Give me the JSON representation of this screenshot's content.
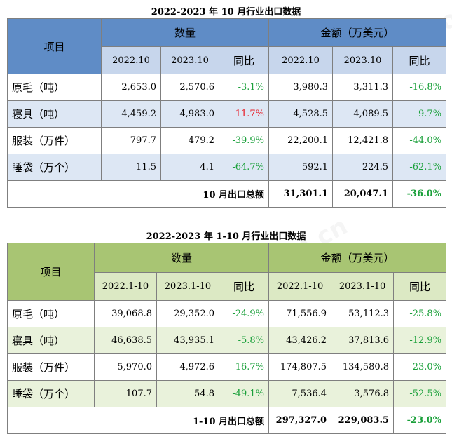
{
  "table1": {
    "title": "2022-2023 年 10 月行业出口数据",
    "item_header": "项目",
    "qty_header": "数量",
    "amt_header": "金额（万美元）",
    "sub_headers": [
      "2022.10",
      "2023.10",
      "同比",
      "2022.10",
      "2023.10",
      "同比"
    ],
    "rows": [
      {
        "label": "原毛（吨）",
        "q1": "2,653.0",
        "q2": "2,570.6",
        "qyoy": "-3.1%",
        "a1": "3,980.3",
        "a2": "3,311.3",
        "ayoy": "-16.8%"
      },
      {
        "label": "寝具（吨）",
        "q1": "4,459.2",
        "q2": "4,983.0",
        "qyoy": "11.7%",
        "a1": "4,528.5",
        "a2": "4,089.5",
        "ayoy": "-9.7%"
      },
      {
        "label": "服装（万件）",
        "q1": "797.7",
        "q2": "479.2",
        "qyoy": "-39.9%",
        "a1": "22,200.1",
        "a2": "12,421.8",
        "ayoy": "-44.0%"
      },
      {
        "label": "睡袋（万个）",
        "q1": "11.5",
        "q2": "4.1",
        "qyoy": "-64.7%",
        "a1": "592.1",
        "a2": "224.5",
        "ayoy": "-62.1%"
      }
    ],
    "total": {
      "label": "10 月出口总额",
      "a1": "31,301.1",
      "a2": "20,047.1",
      "ayoy": "-36.0%"
    },
    "colors": {
      "header_dark": "#5f8cc6",
      "header_light": "#c7d6ec",
      "row_alt": "#dde7f4"
    }
  },
  "table2": {
    "title": "2022-2023 年 1-10 月行业出口数据",
    "item_header": "项目",
    "qty_header": "数量",
    "amt_header": "金额（万美元）",
    "sub_headers": [
      "2022.1-10",
      "2023.1-10",
      "同比",
      "2022.1-10",
      "2023.1-10",
      "同比"
    ],
    "rows": [
      {
        "label": "原毛（吨）",
        "q1": "39,068.8",
        "q2": "29,352.0",
        "qyoy": "-24.9%",
        "a1": "71,556.9",
        "a2": "53,112.3",
        "ayoy": "-25.8%"
      },
      {
        "label": "寝具（吨）",
        "q1": "46,638.5",
        "q2": "43,935.1",
        "qyoy": "-5.8%",
        "a1": "43,426.2",
        "a2": "37,813.6",
        "ayoy": "-12.9%"
      },
      {
        "label": "服装（万件）",
        "q1": "5,970.0",
        "q2": "4,972.6",
        "qyoy": "-16.7%",
        "a1": "174,807.5",
        "a2": "134,580.8",
        "ayoy": "-23.0%"
      },
      {
        "label": "睡袋（万个）",
        "q1": "107.7",
        "q2": "54.8",
        "qyoy": "-49.1%",
        "a1": "7,536.4",
        "a2": "3,576.8",
        "ayoy": "-52.5%"
      }
    ],
    "total": {
      "label": "1-10 月出口总额",
      "a1": "297,327.0",
      "a2": "229,083.5",
      "ayoy": "-23.0%"
    },
    "colors": {
      "header_dark": "#a8c573",
      "header_light": "#dce9c4",
      "row_alt": "#e9f2db"
    }
  },
  "colors": {
    "positive": "#e8202a",
    "negative": "#1aa03a"
  },
  "watermark": "中国羽绒信息网 cfd.com.cn"
}
